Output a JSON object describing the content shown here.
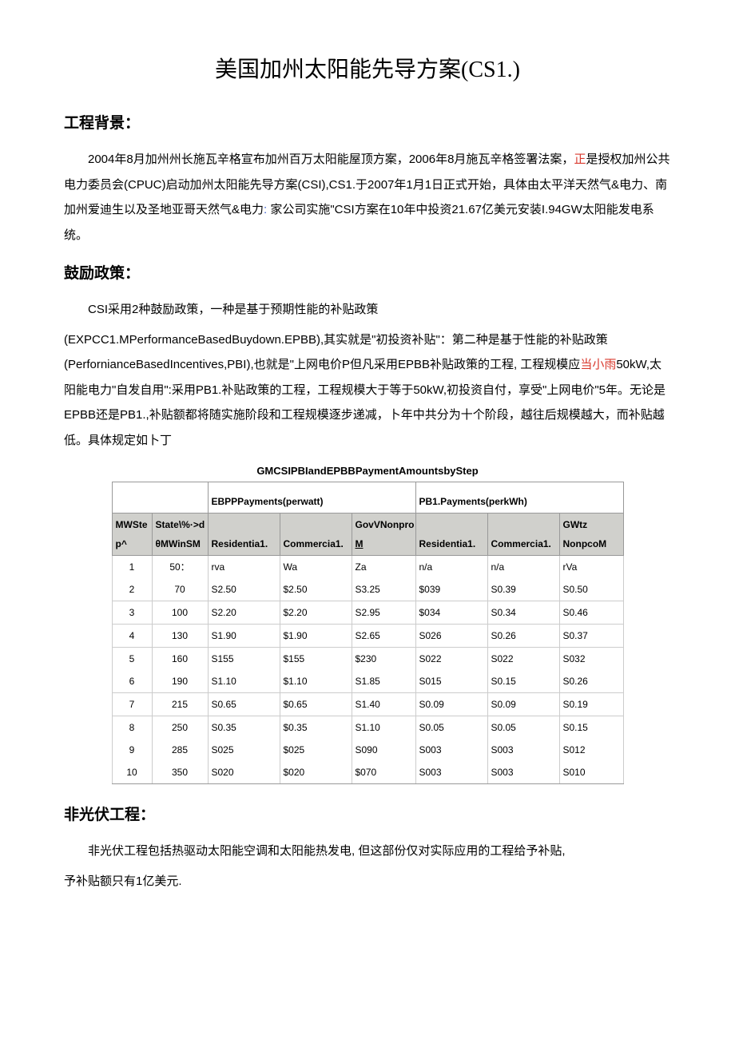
{
  "title": "美国加州太阳能先导方案(CS1.)",
  "s1": {
    "heading": "工程背景："
  },
  "p1a": "2004年8月加州州长施瓦辛格宣布加州百万太阳能屋顶方案，2006年8月施瓦辛格签署法案，",
  "p1b": "正",
  "p1c": "是授权加州公共电力委员会(CPUC)启动加州太阳能先导方案(CSI),CS1.于2007年1月1日正式开始，具体由太平洋天然气&电力、南加州爱迪生以及圣地亚哥天然气&电力",
  "p1d": "家公司实施\"CSI方案在10年中投资21.67亿美元安装I.94GW太阳能发电系统。",
  "s2": {
    "heading": "鼓励政策："
  },
  "p2a": "CSI采用2种鼓励政策，一种是基于预期性能的补贴政策",
  "p2b": "(EXPCC1.MPerformanceBasedBuydown.EPBB),其实就是\"初投资补贴\"：第二种是基于性能的补贴政策(PerfornianceBasedIncentives,PBI),也就是\"上网电价P但凡采用EPBB补贴政策的工程, 工程规模应",
  "p2c": "当小雨",
  "p2d": "50kW,太阳能电力\"自发自用\":采用PB1.补贴政策的工程，工程规模大于等于50kW,初投资自付，享受\"上网电价\"5年。无论是EPBB还是PB1.,补贴额都将随实施阶段和工程规模逐步递减，卜年中共分为十个阶段，越往后规模越大，而补贴越低。具体规定如卜丁",
  "table": {
    "title": "GMCSIPBIandEPBBPaymentAmountsbyStep",
    "h_ebpp": "EBPPPayments(perwatt)",
    "h_pbl": "PB1.Payments(perkWh)",
    "h_step1": "MWSte",
    "h_step2": "p^",
    "h_state1": "State\\%·>d",
    "h_state2": "θMWinSM",
    "h_res": "Residentia1.",
    "h_com": "Commercia1.",
    "h_gov1": "GovVNonpro",
    "h_gov2": "M",
    "h_gov3": "GWtz",
    "h_gov4": "NonpcoM",
    "rows": [
      {
        "step": "1",
        "mw": "50：",
        "er": "rva",
        "ec": "Wa",
        "eg": "Za",
        "pr": "n/a",
        "pc": "n/a",
        "pg": "rVa",
        "b": false
      },
      {
        "step": "2",
        "mw": "70",
        "er": "S2.50",
        "ec": "$2.50",
        "eg": "S3.25",
        "pr": "$039",
        "pc": "S0.39",
        "pg": "S0.50",
        "b": true
      },
      {
        "step": "3",
        "mw": "100",
        "er": "S2.20",
        "ec": "$2.20",
        "eg": "S2.95",
        "pr": "$034",
        "pc": "S0.34",
        "pg": "S0.46",
        "b": true
      },
      {
        "step": "4",
        "mw": "130",
        "er": "S1.90",
        "ec": "$1.90",
        "eg": "S2.65",
        "pr": "S026",
        "pc": "S0.26",
        "pg": "S0.37",
        "b": true
      },
      {
        "step": "5",
        "mw": "160",
        "er": "S155",
        "ec": "$155",
        "eg": "$230",
        "pr": "S022",
        "pc": "S022",
        "pg": "S032",
        "b": false
      },
      {
        "step": "6",
        "mw": "190",
        "er": "S1.10",
        "ec": "$1.10",
        "eg": "S1.85",
        "pr": "S015",
        "pc": "S0.15",
        "pg": "S0.26",
        "b": true
      },
      {
        "step": "7",
        "mw": "215",
        "er": "S0.65",
        "ec": "$0.65",
        "eg": "S1.40",
        "pr": "S0.09",
        "pc": "S0.09",
        "pg": "S0.19",
        "b": true
      },
      {
        "step": "8",
        "mw": "250",
        "er": "S0.35",
        "ec": "$0.35",
        "eg": "S1.10",
        "pr": "S0.05",
        "pc": "S0.05",
        "pg": "S0.15",
        "b": false
      },
      {
        "step": "9",
        "mw": "285",
        "er": "S025",
        "ec": "$025",
        "eg": "S090",
        "pr": "S003",
        "pc": "S003",
        "pg": "S012",
        "b": false
      },
      {
        "step": "10",
        "mw": "350",
        "er": "S020",
        "ec": "$020",
        "eg": "$070",
        "pr": "S003",
        "pc": "S003",
        "pg": "S010",
        "b": false
      }
    ]
  },
  "s3": {
    "heading": "非光伏工程："
  },
  "p3a": "非光伏工程包括热驱动太阳能空调和太阳能热发电, 但这部份仅对实际应用的工程给予补贴,",
  "p3b": "予补贴额只有1亿美元."
}
